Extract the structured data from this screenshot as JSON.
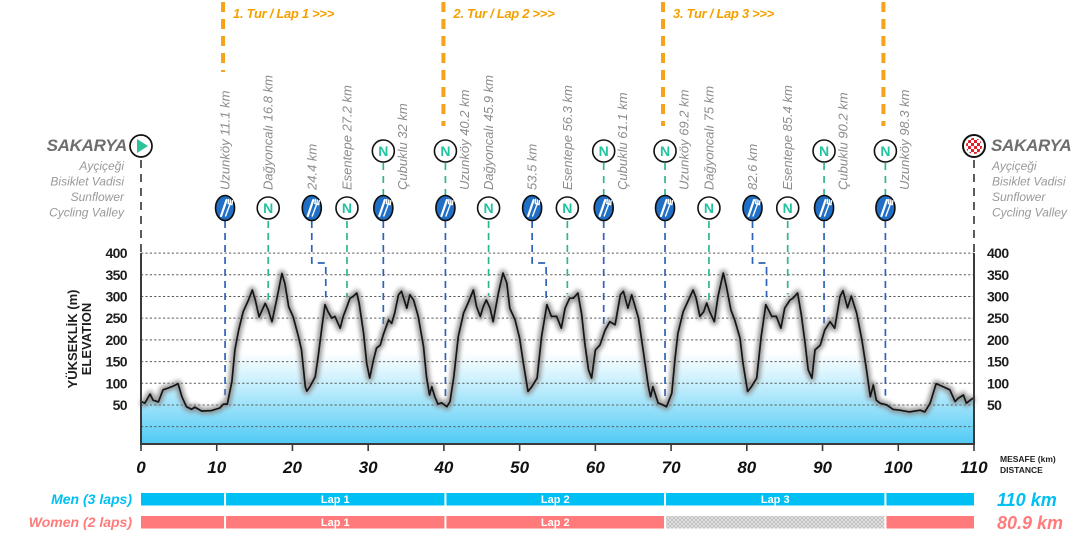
{
  "start": {
    "name": "SAKARYA",
    "lines": [
      "Ayçiçeği",
      "Bisiklet Vadisi",
      "Sunflower",
      "Cycling Valley"
    ],
    "icon": "start-play-icon"
  },
  "finish": {
    "name": "SAKARYA",
    "lines": [
      "Ayçiçeği",
      "Bisiklet Vadisi",
      "Sunflower",
      "Cycling Valley"
    ],
    "icon": "finish-checkered-flag-icon"
  },
  "laps": [
    {
      "km": 11.1,
      "label": "1. Tur / Lap 1 >>>"
    },
    {
      "km": 40.2,
      "label": "2. Tur / Lap 2 >>>"
    },
    {
      "km": 69.2,
      "label": "3. Tur / Lap 3 >>>"
    },
    {
      "km": 98.3,
      "label": ""
    }
  ],
  "icons": {
    "neutral_letter": "N",
    "feed": "feeding-zone-icon",
    "neutral": "neutral-service-icon"
  },
  "colors": {
    "lap_line": "#f7a21b",
    "feed": "#1f6fc6",
    "feed_line": "#2e62b8",
    "neutral": "#22c4a0",
    "neutral_line": "#2fb68e",
    "men": "#00bff3",
    "women": "#ff7b7b",
    "fill_bottom": "#4fcaf4",
    "start_green": "#2cc39a",
    "finish_red": "#e3202a"
  },
  "chart_data": {
    "type": "area",
    "title": "",
    "xlabel": [
      "MESAFE (km)",
      "DISTANCE"
    ],
    "ylabel": [
      "YÜKSEKLİK (m)",
      "ELEVATION"
    ],
    "xlim": [
      0,
      110
    ],
    "ylim": [
      -40,
      400
    ],
    "xticks": [
      0,
      10,
      20,
      30,
      40,
      50,
      60,
      70,
      80,
      90,
      100,
      110
    ],
    "yticks": [
      50,
      100,
      150,
      200,
      250,
      300,
      350,
      400
    ],
    "gridlines": [
      0,
      50,
      100,
      150,
      200,
      250,
      300,
      350,
      400
    ],
    "grid": true,
    "series": [
      {
        "name": "Elevation (m)",
        "points": [
          [
            0,
            58
          ],
          [
            0.5,
            54
          ],
          [
            1.2,
            75
          ],
          [
            1.6,
            61
          ],
          [
            2.3,
            57
          ],
          [
            2.9,
            85
          ],
          [
            3.6,
            89
          ],
          [
            4.3,
            94
          ],
          [
            4.9,
            99
          ],
          [
            5.4,
            69
          ],
          [
            6.0,
            46
          ],
          [
            6.7,
            40
          ],
          [
            7.1,
            45
          ],
          [
            8.0,
            36
          ],
          [
            9.3,
            37
          ],
          [
            10.4,
            43
          ],
          [
            10.9,
            52
          ],
          [
            11.4,
            52
          ],
          [
            12.0,
            104
          ],
          [
            12.4,
            177
          ],
          [
            12.9,
            223
          ],
          [
            13.5,
            265
          ],
          [
            14.2,
            292
          ],
          [
            14.7,
            315
          ],
          [
            15.1,
            292
          ],
          [
            15.6,
            253
          ],
          [
            15.9,
            265
          ],
          [
            16.4,
            284
          ],
          [
            16.8,
            269
          ],
          [
            17.3,
            242
          ],
          [
            17.9,
            292
          ],
          [
            18.6,
            353
          ],
          [
            19.0,
            330
          ],
          [
            19.5,
            276
          ],
          [
            20.1,
            253
          ],
          [
            20.8,
            207
          ],
          [
            21.2,
            177
          ],
          [
            21.7,
            92
          ],
          [
            21.9,
            82
          ],
          [
            22.3,
            92
          ],
          [
            23.0,
            115
          ],
          [
            23.4,
            162
          ],
          [
            23.9,
            231
          ],
          [
            24.3,
            281
          ],
          [
            24.7,
            265
          ],
          [
            25.2,
            250
          ],
          [
            25.6,
            254
          ],
          [
            26.3,
            227
          ],
          [
            26.7,
            254
          ],
          [
            27.2,
            277
          ],
          [
            27.6,
            296
          ],
          [
            28.0,
            300
          ],
          [
            28.5,
            308
          ],
          [
            28.8,
            285
          ],
          [
            29.4,
            215
          ],
          [
            29.8,
            146
          ],
          [
            30.2,
            112
          ],
          [
            30.7,
            154
          ],
          [
            31.1,
            181
          ],
          [
            31.6,
            188
          ],
          [
            32.0,
            212
          ],
          [
            32.7,
            246
          ],
          [
            33.1,
            238
          ],
          [
            33.5,
            262
          ],
          [
            34.0,
            304
          ],
          [
            34.4,
            312
          ],
          [
            35.1,
            273
          ],
          [
            35.5,
            304
          ],
          [
            36.0,
            292
          ],
          [
            36.6,
            254
          ],
          [
            37.3,
            185
          ],
          [
            37.7,
            115
          ],
          [
            38.1,
            73
          ],
          [
            38.4,
            92
          ],
          [
            38.8,
            69
          ],
          [
            39.2,
            52
          ],
          [
            39.7,
            55
          ],
          [
            40.4,
            46
          ],
          [
            40.8,
            58
          ],
          [
            41.3,
            115
          ],
          [
            41.9,
            208
          ],
          [
            42.6,
            262
          ],
          [
            43.2,
            285
          ],
          [
            43.9,
            315
          ],
          [
            44.3,
            277
          ],
          [
            44.8,
            254
          ],
          [
            45.2,
            277
          ],
          [
            45.6,
            292
          ],
          [
            46.1,
            273
          ],
          [
            46.5,
            242
          ],
          [
            47.2,
            308
          ],
          [
            47.8,
            354
          ],
          [
            48.3,
            331
          ],
          [
            48.7,
            273
          ],
          [
            49.4,
            246
          ],
          [
            50.0,
            204
          ],
          [
            50.5,
            146
          ],
          [
            51.1,
            81
          ],
          [
            51.6,
            92
          ],
          [
            52.3,
            112
          ],
          [
            52.9,
            208
          ],
          [
            53.6,
            281
          ],
          [
            54.2,
            254
          ],
          [
            54.9,
            254
          ],
          [
            55.5,
            227
          ],
          [
            56.0,
            273
          ],
          [
            56.6,
            296
          ],
          [
            57.1,
            296
          ],
          [
            57.7,
            308
          ],
          [
            58.2,
            258
          ],
          [
            58.6,
            192
          ],
          [
            59.1,
            131
          ],
          [
            59.5,
            112
          ],
          [
            60.0,
            177
          ],
          [
            60.6,
            188
          ],
          [
            61.3,
            223
          ],
          [
            61.9,
            242
          ],
          [
            62.6,
            235
          ],
          [
            63.3,
            304
          ],
          [
            63.7,
            312
          ],
          [
            64.3,
            273
          ],
          [
            64.8,
            304
          ],
          [
            65.7,
            250
          ],
          [
            66.3,
            177
          ],
          [
            67.0,
            92
          ],
          [
            67.3,
            69
          ],
          [
            67.6,
            92
          ],
          [
            68.3,
            54
          ],
          [
            68.7,
            52
          ],
          [
            69.4,
            46
          ],
          [
            70.1,
            77
          ],
          [
            70.5,
            154
          ],
          [
            70.9,
            215
          ],
          [
            71.6,
            265
          ],
          [
            72.3,
            292
          ],
          [
            72.9,
            315
          ],
          [
            73.3,
            296
          ],
          [
            73.8,
            254
          ],
          [
            74.3,
            265
          ],
          [
            74.7,
            285
          ],
          [
            75.1,
            265
          ],
          [
            75.7,
            242
          ],
          [
            76.2,
            300
          ],
          [
            76.9,
            354
          ],
          [
            77.3,
            323
          ],
          [
            77.9,
            269
          ],
          [
            78.4,
            246
          ],
          [
            79.1,
            204
          ],
          [
            79.5,
            146
          ],
          [
            80.1,
            81
          ],
          [
            80.6,
            92
          ],
          [
            81.3,
            112
          ],
          [
            81.9,
            208
          ],
          [
            82.5,
            281
          ],
          [
            83.3,
            254
          ],
          [
            83.9,
            254
          ],
          [
            84.5,
            227
          ],
          [
            85.0,
            273
          ],
          [
            85.7,
            292
          ],
          [
            86.1,
            296
          ],
          [
            86.7,
            308
          ],
          [
            87.2,
            258
          ],
          [
            87.7,
            192
          ],
          [
            88.1,
            131
          ],
          [
            88.6,
            112
          ],
          [
            89.0,
            177
          ],
          [
            89.7,
            188
          ],
          [
            90.3,
            223
          ],
          [
            91.0,
            242
          ],
          [
            91.6,
            227
          ],
          [
            92.3,
            300
          ],
          [
            92.7,
            313
          ],
          [
            93.3,
            274
          ],
          [
            93.8,
            301
          ],
          [
            94.5,
            262
          ],
          [
            95.2,
            200
          ],
          [
            95.8,
            131
          ],
          [
            96.3,
            69
          ],
          [
            96.7,
            96
          ],
          [
            97.1,
            61
          ],
          [
            97.6,
            54
          ],
          [
            98.5,
            50
          ],
          [
            99.3,
            40
          ],
          [
            100.2,
            38
          ],
          [
            101.5,
            34
          ],
          [
            102.9,
            38
          ],
          [
            103.5,
            34
          ],
          [
            104.2,
            54
          ],
          [
            105.0,
            99
          ],
          [
            105.7,
            94
          ],
          [
            106.8,
            85
          ],
          [
            107.5,
            58
          ],
          [
            107.9,
            65
          ],
          [
            108.6,
            73
          ],
          [
            109.0,
            54
          ],
          [
            109.5,
            61
          ],
          [
            110,
            67
          ]
        ]
      }
    ],
    "markers": [
      {
        "km": 11.1,
        "label": "Uzunköy 11.1 km",
        "icon": "feed",
        "top_icon": null
      },
      {
        "km": 16.8,
        "label": "Dağyoncalı 16.8 km",
        "icon": "neutral",
        "top_icon": null
      },
      {
        "km": 24.4,
        "label": "24.4 km",
        "icon": "feed",
        "top_icon": null
      },
      {
        "km": 27.2,
        "label": "Esentepe 27.2 km",
        "icon": "neutral",
        "top_icon": null
      },
      {
        "km": 32,
        "label": "Çubuklu 32 km",
        "icon": "feed",
        "top_icon": "neutral"
      },
      {
        "km": 40.2,
        "label": "Uzunköy 40.2 km",
        "icon": "feed",
        "top_icon": "neutral"
      },
      {
        "km": 45.9,
        "label": "Dağyoncalı 45.9 km",
        "icon": "neutral",
        "top_icon": null
      },
      {
        "km": 53.5,
        "label": "53.5 km",
        "icon": "feed",
        "top_icon": null
      },
      {
        "km": 56.3,
        "label": "Esentepe 56.3 km",
        "icon": "neutral",
        "top_icon": null
      },
      {
        "km": 61.1,
        "label": "Çubuklu 61.1 km",
        "icon": "feed",
        "top_icon": "neutral"
      },
      {
        "km": 69.2,
        "label": "Uzunköy 69.2 km",
        "icon": "feed",
        "top_icon": "neutral"
      },
      {
        "km": 75,
        "label": "Dağyoncalı 75 km",
        "icon": "neutral",
        "top_icon": null
      },
      {
        "km": 82.6,
        "label": "82.6 km",
        "icon": "feed",
        "top_icon": null
      },
      {
        "km": 85.4,
        "label": "Esentepe 85.4 km",
        "icon": "neutral",
        "top_icon": null
      },
      {
        "km": 90.2,
        "label": "Çubuklu 90.2 km",
        "icon": "feed",
        "top_icon": "neutral"
      },
      {
        "km": 98.3,
        "label": "Uzunköy 98.3 km",
        "icon": "feed",
        "top_icon": "neutral"
      }
    ]
  },
  "distance_bars": [
    {
      "label": "Men (3 laps)",
      "total": "110 km",
      "color": "#00bff3",
      "segments": [
        {
          "from": 0,
          "to": 11.1,
          "label": "",
          "hatched": false
        },
        {
          "from": 11.1,
          "to": 40.2,
          "label": "Lap 1",
          "hatched": false
        },
        {
          "from": 40.2,
          "to": 69.2,
          "label": "Lap 2",
          "hatched": false
        },
        {
          "from": 69.2,
          "to": 98.3,
          "label": "Lap 3",
          "hatched": false
        },
        {
          "from": 98.3,
          "to": 110,
          "label": "",
          "hatched": false
        }
      ]
    },
    {
      "label": "Women (2 laps)",
      "total": "80.9 km",
      "color": "#ff7b7b",
      "segments": [
        {
          "from": 0,
          "to": 11.1,
          "label": "",
          "hatched": false
        },
        {
          "from": 11.1,
          "to": 40.2,
          "label": "Lap 1",
          "hatched": false
        },
        {
          "from": 40.2,
          "to": 69.2,
          "label": "Lap 2",
          "hatched": false
        },
        {
          "from": 69.2,
          "to": 98.3,
          "label": "",
          "hatched": true
        },
        {
          "from": 98.3,
          "to": 110,
          "label": "",
          "hatched": false
        }
      ]
    }
  ]
}
